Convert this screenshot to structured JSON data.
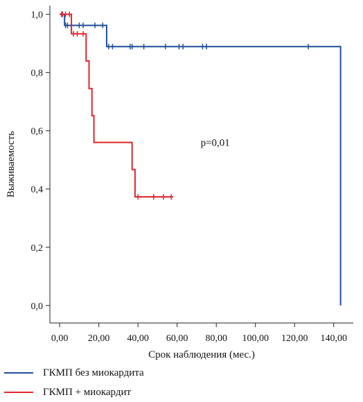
{
  "chart_data": {
    "type": "line",
    "subtype": "kaplan-meier step survival curves with censor marks",
    "xlabel": "Срок наблюдения (мес.)",
    "ylabel": "Выживаемость",
    "xlim": [
      -5,
      150
    ],
    "ylim": [
      -0.06,
      1.03
    ],
    "x_ticks": [
      0,
      20,
      40,
      60,
      80,
      100,
      120,
      140
    ],
    "x_tick_labels": [
      "0,00",
      "20,00",
      "40,00",
      "60,00",
      "80,00",
      "100,00",
      "120,00",
      "140,00"
    ],
    "y_ticks": [
      0,
      0.2,
      0.4,
      0.6,
      0.8,
      1.0
    ],
    "y_tick_labels": [
      "0,0",
      "0,2",
      "0,4",
      "0,6",
      "0,8",
      "1,0"
    ],
    "annotation": "p=0,01",
    "annotation_at": [
      72,
      0.56
    ],
    "legend_position": "bottom-left",
    "grid": false,
    "series": [
      {
        "name": "ГКМП без миокардита",
        "color": "#1f4e96",
        "steps": [
          [
            0,
            1.0
          ],
          [
            2.5,
            0.962
          ],
          [
            24,
            0.889
          ],
          [
            143.5,
            0.0
          ]
        ],
        "end_x": 143.5,
        "censored": [
          [
            1,
            1.0
          ],
          [
            3,
            0.962
          ],
          [
            4,
            0.962
          ],
          [
            6,
            0.962
          ],
          [
            10,
            0.962
          ],
          [
            12,
            0.962
          ],
          [
            18,
            0.962
          ],
          [
            22,
            0.962
          ],
          [
            25,
            0.889
          ],
          [
            27,
            0.889
          ],
          [
            36,
            0.889
          ],
          [
            37,
            0.889
          ],
          [
            43,
            0.889
          ],
          [
            54,
            0.889
          ],
          [
            61,
            0.889
          ],
          [
            63,
            0.889
          ],
          [
            73,
            0.889
          ],
          [
            75,
            0.889
          ],
          [
            127,
            0.889
          ]
        ]
      },
      {
        "name": "ГКМП + миокардит",
        "color": "#e0262b",
        "steps": [
          [
            0,
            1.0
          ],
          [
            6,
            0.933
          ],
          [
            13.5,
            0.84
          ],
          [
            15,
            0.745
          ],
          [
            16.5,
            0.652
          ],
          [
            17.5,
            0.56
          ],
          [
            37,
            0.467
          ],
          [
            38.5,
            0.373
          ]
        ],
        "end_x": 58,
        "censored": [
          [
            1.5,
            1.0
          ],
          [
            3,
            1.0
          ],
          [
            5,
            1.0
          ],
          [
            7,
            0.933
          ],
          [
            9,
            0.933
          ],
          [
            12,
            0.933
          ],
          [
            40,
            0.373
          ],
          [
            48,
            0.373
          ],
          [
            53,
            0.373
          ],
          [
            57,
            0.373
          ]
        ]
      }
    ]
  }
}
